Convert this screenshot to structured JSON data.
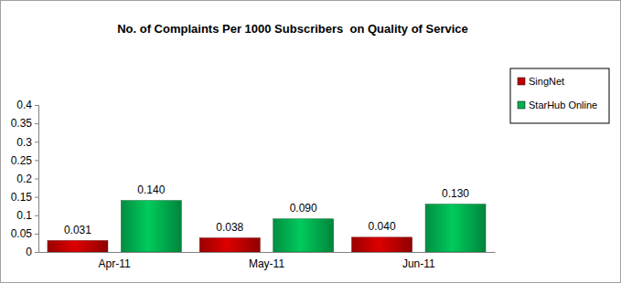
{
  "chart_data": {
    "type": "bar",
    "title": "No. of Complaints Per 1000 Subscribers  on Quality of Service",
    "categories": [
      "Apr-11",
      "May-11",
      "Jun-11"
    ],
    "series": [
      {
        "name": "SingNet",
        "color": "#c00000",
        "values": [
          0.031,
          0.038,
          0.04
        ],
        "value_labels": [
          "0.031",
          "0.038",
          "0.040"
        ]
      },
      {
        "name": "StarHub Online",
        "color": "#00b050",
        "values": [
          0.14,
          0.09,
          0.13
        ],
        "value_labels": [
          "0.140",
          "0.090",
          "0.130"
        ]
      }
    ],
    "ylim": [
      0,
      0.4
    ],
    "yticks": [
      0,
      0.05,
      0.1,
      0.15,
      0.2,
      0.25,
      0.3,
      0.35,
      0.4
    ],
    "grid": false,
    "legend": "right",
    "data_labels": true
  }
}
